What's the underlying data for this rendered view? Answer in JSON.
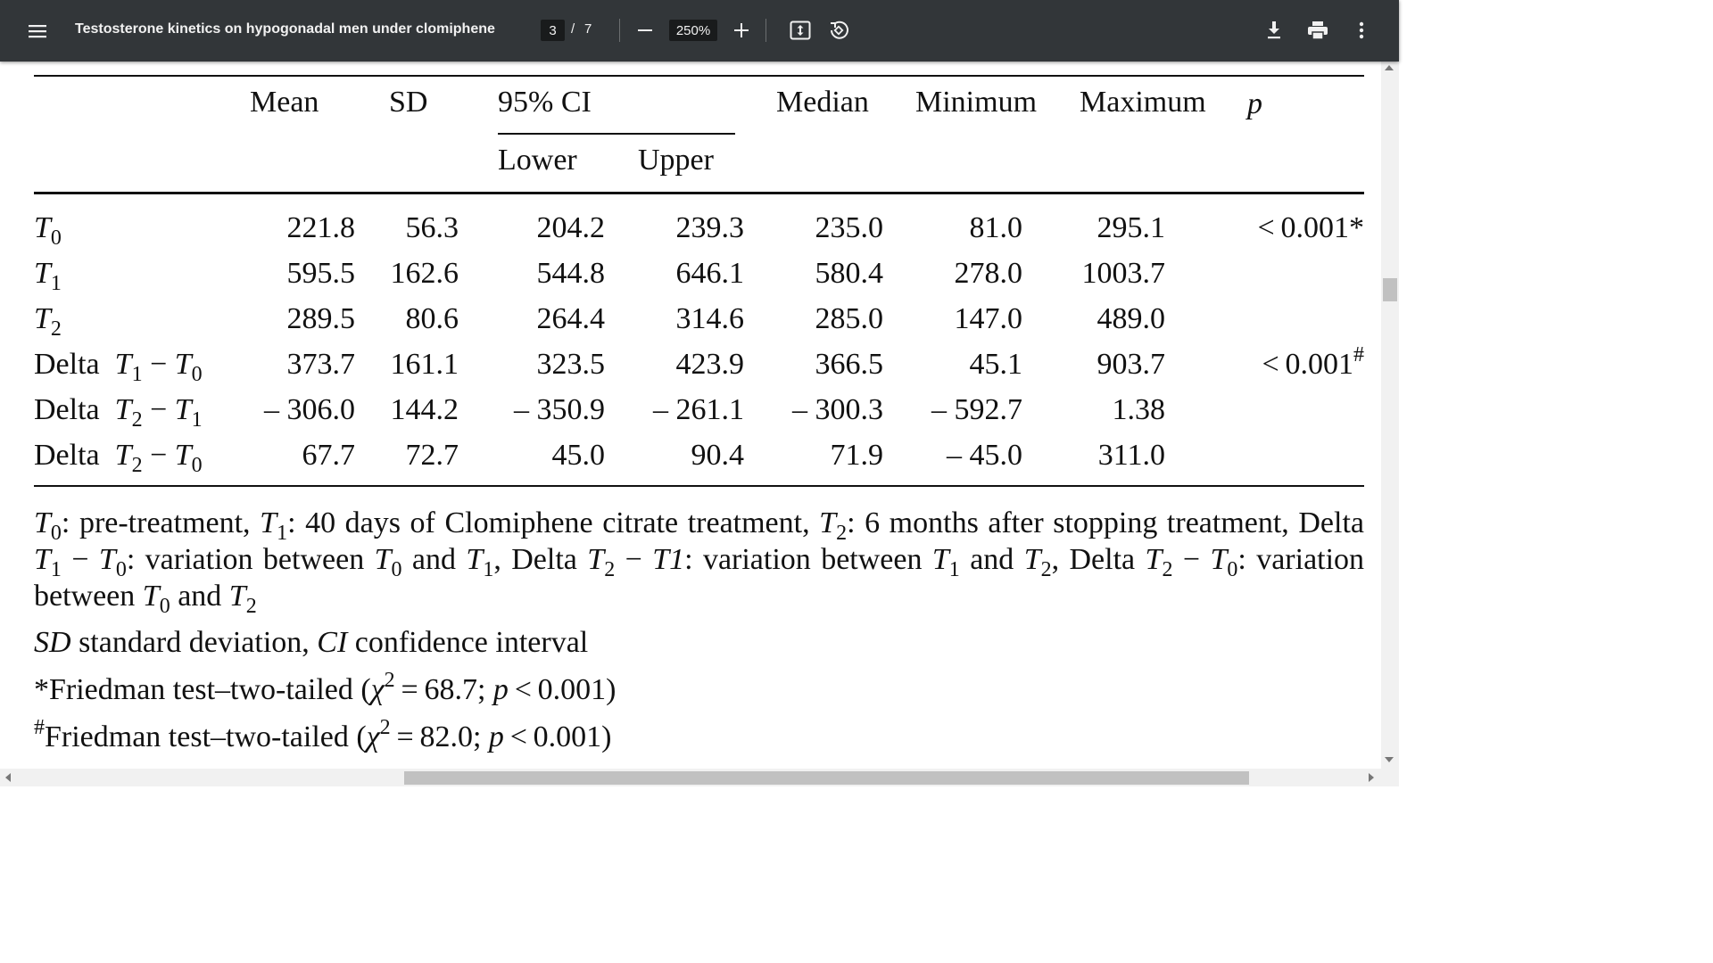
{
  "toolbar": {
    "title": "Testosterone kinetics on hypogonadal men under clomiphene",
    "current_page": "3",
    "page_separator": "/",
    "total_pages": "7",
    "zoom": "250%",
    "icons": [
      "menu-icon",
      "zoom-out-icon",
      "zoom-in-icon",
      "fit-page-icon",
      "rotate-icon",
      "download-icon",
      "print-icon",
      "more-vert-icon"
    ]
  },
  "table": {
    "headers": {
      "mean": "Mean",
      "sd": "SD",
      "ci": "95% CI",
      "lower": "Lower",
      "upper": "Upper",
      "median": "Median",
      "minimum": "Minimum",
      "maximum": "Maximum",
      "p": "p"
    },
    "rows": [
      {
        "delta": "",
        "a": "T",
        "a_sub": "0",
        "b": "",
        "b_sub": "",
        "mean": "221.8",
        "sd": "56.3",
        "lower": "204.2",
        "upper": "239.3",
        "median": "235.0",
        "min": "81.0",
        "max": "295.1",
        "p": "< 0.001*"
      },
      {
        "delta": "",
        "a": "T",
        "a_sub": "1",
        "b": "",
        "b_sub": "",
        "mean": "595.5",
        "sd": "162.6",
        "lower": "544.8",
        "upper": "646.1",
        "median": "580.4",
        "min": "278.0",
        "max": "1003.7",
        "p": ""
      },
      {
        "delta": "",
        "a": "T",
        "a_sub": "2",
        "b": "",
        "b_sub": "",
        "mean": "289.5",
        "sd": "80.6",
        "lower": "264.4",
        "upper": "314.6",
        "median": "285.0",
        "min": "147.0",
        "max": "489.0",
        "p": ""
      },
      {
        "delta": "Delta",
        "a": "T",
        "a_sub": "1",
        "b": "T",
        "b_sub": "0",
        "mean": "373.7",
        "sd": "161.1",
        "lower": "323.5",
        "upper": "423.9",
        "median": "366.5",
        "min": "45.1",
        "max": "903.7",
        "p": "< 0.001#"
      },
      {
        "delta": "Delta",
        "a": "T",
        "a_sub": "2",
        "b": "T",
        "b_sub": "1",
        "mean": "– 306.0",
        "sd": "144.2",
        "lower": "– 350.9",
        "upper": "– 261.1",
        "median": "– 300.3",
        "min": "– 592.7",
        "max": "1.38",
        "p": ""
      },
      {
        "delta": "Delta",
        "a": "T",
        "a_sub": "2",
        "b": "T",
        "b_sub": "0",
        "mean": "67.7",
        "sd": "72.7",
        "lower": "45.0",
        "upper": "90.4",
        "median": "71.9",
        "min": "– 45.0",
        "max": "311.0",
        "p": ""
      }
    ],
    "minus": "−"
  },
  "footnotes": {
    "definitions": {
      "t0": "T",
      "t0_sub": "0",
      "t0_text": ": pre-treatment, ",
      "t1": "T",
      "t1_sub": "1",
      "t1_text": ": 40 days of Clomiphene citrate treatment, ",
      "t2": "T",
      "t2_sub": "2",
      "t2_text": ": 6 months after stopping treatment, Delta ",
      "d1a_sub": "1",
      "d1b_sub": "0",
      "d1_text": ": variation between ",
      "d1c_sub": "0",
      "and": " and ",
      "d1d_sub": "1",
      "d2_lead": ", Delta ",
      "d2a_sub": "2",
      "d2_t1": "T1",
      "d2_text": ": variation between ",
      "d2c_sub": "1",
      "d2d_sub": "2",
      "d3_lead": ", Delta ",
      "d3a_sub": "2",
      "d3b_sub": "0",
      "d3_text": ": variation between ",
      "d3c_sub": "0",
      "d3d_sub": "2"
    },
    "abbrev": {
      "sd": "SD",
      "sd_text": " standard deviation, ",
      "ci": "CI",
      "ci_text": " confidence interval"
    },
    "friedman1": {
      "mark": "*",
      "text": "Friedman test–two-tailed (",
      "chi": "χ",
      "sq": "2",
      "stat": " = 68.7; ",
      "p": "p",
      "pval": " < 0.001)"
    },
    "friedman2": {
      "mark": "#",
      "text": "Friedman test–two-tailed (",
      "chi": "χ",
      "sq": "2",
      "stat": " = 82.0; ",
      "p": "p",
      "pval": " < 0.001)"
    }
  },
  "colors": {
    "toolbar_bg": "#323639",
    "input_bg": "#191b1c",
    "text": "#111111"
  }
}
